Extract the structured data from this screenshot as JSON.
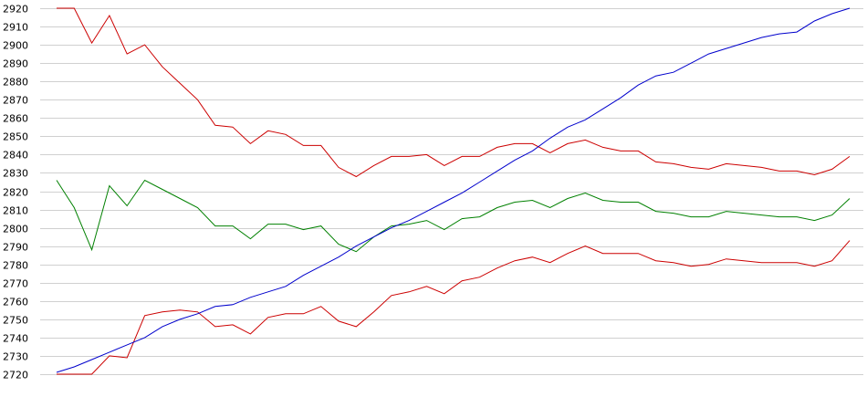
{
  "chart_data": {
    "type": "line",
    "title": "",
    "xlabel": "",
    "ylabel": "",
    "grid": true,
    "ylim": [
      2720,
      2920
    ],
    "y_ticks": [
      "2720",
      "2730",
      "2740",
      "2750",
      "2760",
      "2770",
      "2780",
      "2790",
      "2800",
      "2810",
      "2820",
      "2830",
      "2840",
      "2850",
      "2860",
      "2870",
      "2880",
      "2890",
      "2900",
      "2910",
      "2920"
    ],
    "x": [
      0,
      1,
      2,
      3,
      4,
      5,
      6,
      7,
      8,
      9,
      10,
      11,
      12,
      13,
      14,
      15,
      16,
      17,
      18,
      19,
      20,
      21,
      22,
      23,
      24,
      25,
      26,
      27,
      28,
      29,
      30,
      31,
      32,
      33,
      34,
      35,
      36,
      37,
      38,
      39,
      40,
      41,
      42,
      43,
      44,
      45
    ],
    "series": [
      {
        "color": "#cc0000",
        "values": [
          2920,
          2920,
          2901,
          2916,
          2895,
          2900,
          2888,
          2879,
          2870,
          2856,
          2855,
          2846,
          2853,
          2851,
          2845,
          2845,
          2833,
          2828,
          2834,
          2839,
          2839,
          2840,
          2834,
          2839,
          2839,
          2844,
          2846,
          2846,
          2841,
          2846,
          2848,
          2844,
          2842,
          2842,
          2836,
          2835,
          2833,
          2832,
          2835,
          2834,
          2833,
          2831,
          2831,
          2829,
          2832,
          2839
        ]
      },
      {
        "color": "#008000",
        "values": [
          2826,
          2811,
          2788,
          2823,
          2812,
          2826,
          2821,
          2816,
          2811,
          2801,
          2801,
          2794,
          2802,
          2802,
          2799,
          2801,
          2791,
          2787,
          2795,
          2801,
          2802,
          2804,
          2799,
          2805,
          2806,
          2811,
          2814,
          2815,
          2811,
          2816,
          2819,
          2815,
          2814,
          2814,
          2809,
          2808,
          2806,
          2806,
          2809,
          2808,
          2807,
          2806,
          2806,
          2804,
          2807,
          2816
        ]
      },
      {
        "color": "#cc0000",
        "values": [
          2720,
          2720,
          2720,
          2730,
          2729,
          2752,
          2754,
          2755,
          2754,
          2746,
          2747,
          2742,
          2751,
          2753,
          2753,
          2757,
          2749,
          2746,
          2754,
          2763,
          2765,
          2768,
          2764,
          2771,
          2773,
          2778,
          2782,
          2784,
          2781,
          2786,
          2790,
          2786,
          2786,
          2786,
          2782,
          2781,
          2779,
          2780,
          2783,
          2782,
          2781,
          2781,
          2781,
          2779,
          2782,
          2793
        ]
      },
      {
        "color": "#0000cc",
        "values": [
          2721,
          2724,
          2728,
          2732,
          2736,
          2740,
          2746,
          2750,
          2753,
          2757,
          2758,
          2762,
          2765,
          2768,
          2774,
          2779,
          2784,
          2790,
          2795,
          2800,
          2804,
          2809,
          2814,
          2819,
          2825,
          2831,
          2837,
          2842,
          2849,
          2855,
          2859,
          2865,
          2871,
          2878,
          2883,
          2885,
          2890,
          2895,
          2898,
          2901,
          2904,
          2906,
          2907,
          2913,
          2917,
          2920
        ]
      }
    ]
  }
}
